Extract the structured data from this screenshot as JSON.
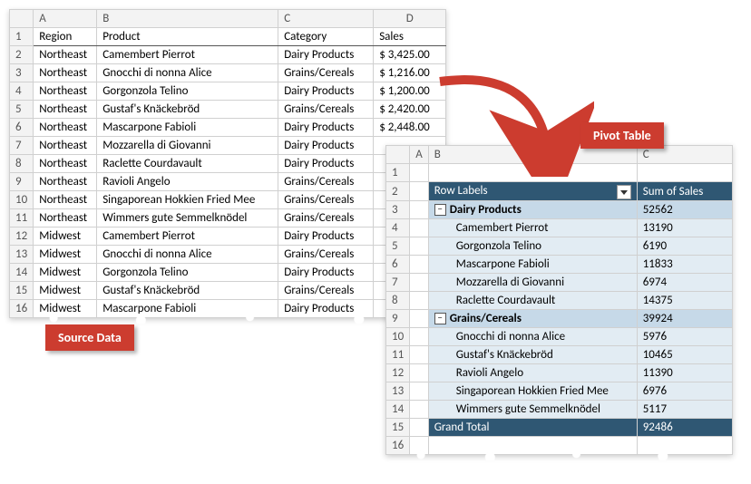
{
  "source": {
    "columns": [
      "A",
      "B",
      "C",
      "D"
    ],
    "headers": {
      "A": "Region",
      "B": "Product",
      "C": "Category",
      "D": "Sales"
    },
    "rows": [
      {
        "n": 2,
        "A": "Northeast",
        "B": "Camembert Pierrot",
        "C": "Dairy Products",
        "D": "$ 3,425.00"
      },
      {
        "n": 3,
        "A": "Northeast",
        "B": "Gnocchi di nonna Alice",
        "C": "Grains/Cereals",
        "D": "$ 1,216.00"
      },
      {
        "n": 4,
        "A": "Northeast",
        "B": "Gorgonzola Telino",
        "C": "Dairy Products",
        "D": "$ 1,200.00"
      },
      {
        "n": 5,
        "A": "Northeast",
        "B": "Gustaf's Knäckebröd",
        "C": "Grains/Cereals",
        "D": "$ 2,420.00"
      },
      {
        "n": 6,
        "A": "Northeast",
        "B": "Mascarpone Fabioli",
        "C": "Dairy Products",
        "D": "$ 2,448.00"
      },
      {
        "n": 7,
        "A": "Northeast",
        "B": "Mozzarella di Giovanni",
        "C": "Dairy Products",
        "D": ""
      },
      {
        "n": 8,
        "A": "Northeast",
        "B": "Raclette Courdavault",
        "C": "Dairy Products",
        "D": ""
      },
      {
        "n": 9,
        "A": "Northeast",
        "B": "Ravioli Angelo",
        "C": "Grains/Cereals",
        "D": ""
      },
      {
        "n": 10,
        "A": "Northeast",
        "B": "Singaporean Hokkien Fried Mee",
        "C": "Grains/Cereals",
        "D": ""
      },
      {
        "n": 11,
        "A": "Northeast",
        "B": "Wimmers gute Semmelknödel",
        "C": "Grains/Cereals",
        "D": ""
      },
      {
        "n": 12,
        "A": "Midwest",
        "B": "Camembert Pierrot",
        "C": "Dairy Products",
        "D": ""
      },
      {
        "n": 13,
        "A": "Midwest",
        "B": "Gnocchi di nonna Alice",
        "C": "Grains/Cereals",
        "D": ""
      },
      {
        "n": 14,
        "A": "Midwest",
        "B": "Gorgonzola Telino",
        "C": "Dairy Products",
        "D": ""
      },
      {
        "n": 15,
        "A": "Midwest",
        "B": "Gustaf's Knäckebröd",
        "C": "Grains/Cereals",
        "D": ""
      },
      {
        "n": 16,
        "A": "Midwest",
        "B": "Mascarpone Fabioli",
        "C": "Dairy Products",
        "D": ""
      }
    ]
  },
  "pivot": {
    "row_labels_header": "Row Labels",
    "sum_header": "Sum of Sales",
    "columns": [
      "A",
      "B",
      "C"
    ],
    "rows": [
      {
        "n": 1,
        "type": "blank"
      },
      {
        "n": 2,
        "type": "header"
      },
      {
        "n": 3,
        "type": "cat",
        "label": "Dairy Products",
        "val": "52562"
      },
      {
        "n": 4,
        "type": "item",
        "label": "Camembert Pierrot",
        "val": "13190"
      },
      {
        "n": 5,
        "type": "item",
        "label": "Gorgonzola Telino",
        "val": "6190"
      },
      {
        "n": 6,
        "type": "item",
        "label": "Mascarpone Fabioli",
        "val": "11833"
      },
      {
        "n": 7,
        "type": "item",
        "label": "Mozzarella di Giovanni",
        "val": "6974"
      },
      {
        "n": 8,
        "type": "item",
        "label": "Raclette Courdavault",
        "val": "14375"
      },
      {
        "n": 9,
        "type": "cat",
        "label": "Grains/Cereals",
        "val": "39924"
      },
      {
        "n": 10,
        "type": "item",
        "label": "Gnocchi di nonna Alice",
        "val": "5976"
      },
      {
        "n": 11,
        "type": "item",
        "label": "Gustaf's Knäckebröd",
        "val": "10465"
      },
      {
        "n": 12,
        "type": "item",
        "label": "Ravioli Angelo",
        "val": "11390"
      },
      {
        "n": 13,
        "type": "item",
        "label": "Singaporean Hokkien Fried Mee",
        "val": "6976"
      },
      {
        "n": 14,
        "type": "item",
        "label": "Wimmers gute Semmelknödel",
        "val": "5117"
      },
      {
        "n": 15,
        "type": "grand",
        "label": "Grand Total",
        "val": "92486"
      },
      {
        "n": 16,
        "type": "blank"
      }
    ]
  },
  "callouts": {
    "source": "Source Data",
    "pivot": "Pivot Table"
  },
  "colors": {
    "pivot_header_bg": "#2f5773",
    "pivot_header_fg": "#ffffff",
    "pivot_cat_bg": "#c6d9e8",
    "pivot_row_light": "#e2ecf3",
    "callout_bg": "#cc3c2f",
    "grid_border": "#d0d0d0",
    "arrow": "#cc3c2f"
  }
}
